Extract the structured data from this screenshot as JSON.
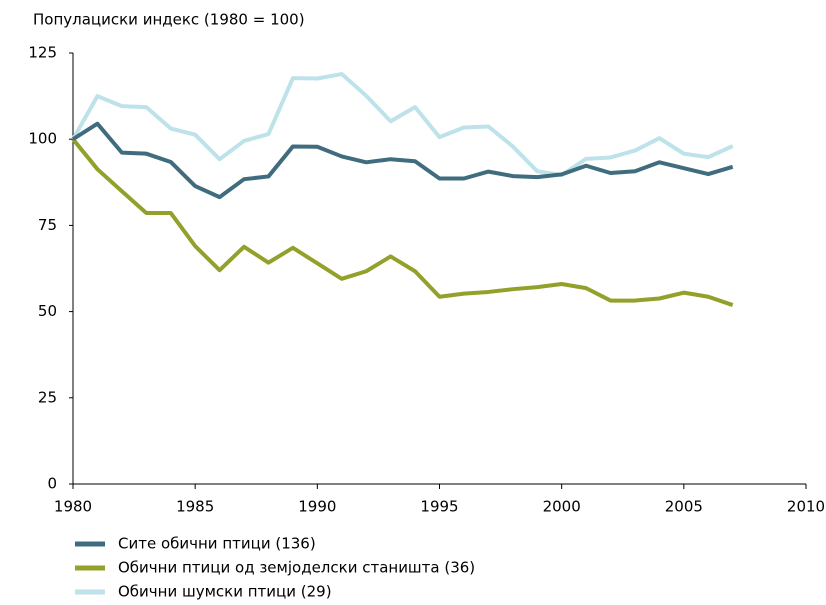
{
  "chart_data": {
    "type": "line",
    "title": "Популациски индекс (1980 = 100)",
    "x": [
      1980,
      1981,
      1982,
      1983,
      1984,
      1985,
      1986,
      1987,
      1988,
      1989,
      1990,
      1991,
      1992,
      1993,
      1994,
      1995,
      1996,
      1997,
      1998,
      1999,
      2000,
      2001,
      2002,
      2003,
      2004,
      2005,
      2006,
      2007
    ],
    "series": [
      {
        "name": "Сите обични птици (136)",
        "color": "#3f6c7e",
        "values": [
          100,
          104.5,
          96.1,
          95.8,
          93.4,
          86.4,
          83.2,
          88.4,
          89.2,
          97.9,
          97.8,
          95,
          93.3,
          94.2,
          93.6,
          88.6,
          88.6,
          90.6,
          89.3,
          89,
          89.8,
          92.3,
          90.2,
          90.7,
          93.3,
          91.6,
          89.9,
          92
        ]
      },
      {
        "name": "Обични птици од земјоделски станишта (36)",
        "color": "#93a02a",
        "values": [
          100,
          91.3,
          84.9,
          78.6,
          78.6,
          69,
          62,
          68.8,
          64.2,
          68.5,
          64,
          59.5,
          61.7,
          66,
          61.7,
          54.3,
          55.2,
          55.7,
          56.5,
          57.1,
          58,
          56.8,
          53.2,
          53.2,
          53.8,
          55.5,
          54.3,
          51.9
        ]
      },
      {
        "name": "Обични шумски птици (29)",
        "color": "#bde2ea",
        "values": [
          100,
          112.5,
          109.6,
          109.3,
          103.1,
          101.3,
          94.2,
          99.5,
          101.5,
          117.7,
          117.6,
          118.9,
          112.6,
          105.2,
          109.3,
          100.6,
          103.4,
          103.7,
          97.9,
          90.7,
          89.6,
          94.3,
          94.7,
          96.7,
          100.3,
          95.8,
          94.8,
          98
        ]
      }
    ],
    "xlim": [
      1980,
      2010
    ],
    "xticks": [
      1980,
      1985,
      1990,
      1995,
      2000,
      2005,
      2010
    ],
    "ylim": [
      0,
      125
    ],
    "yticks": [
      0,
      25,
      50,
      75,
      100,
      125
    ]
  }
}
